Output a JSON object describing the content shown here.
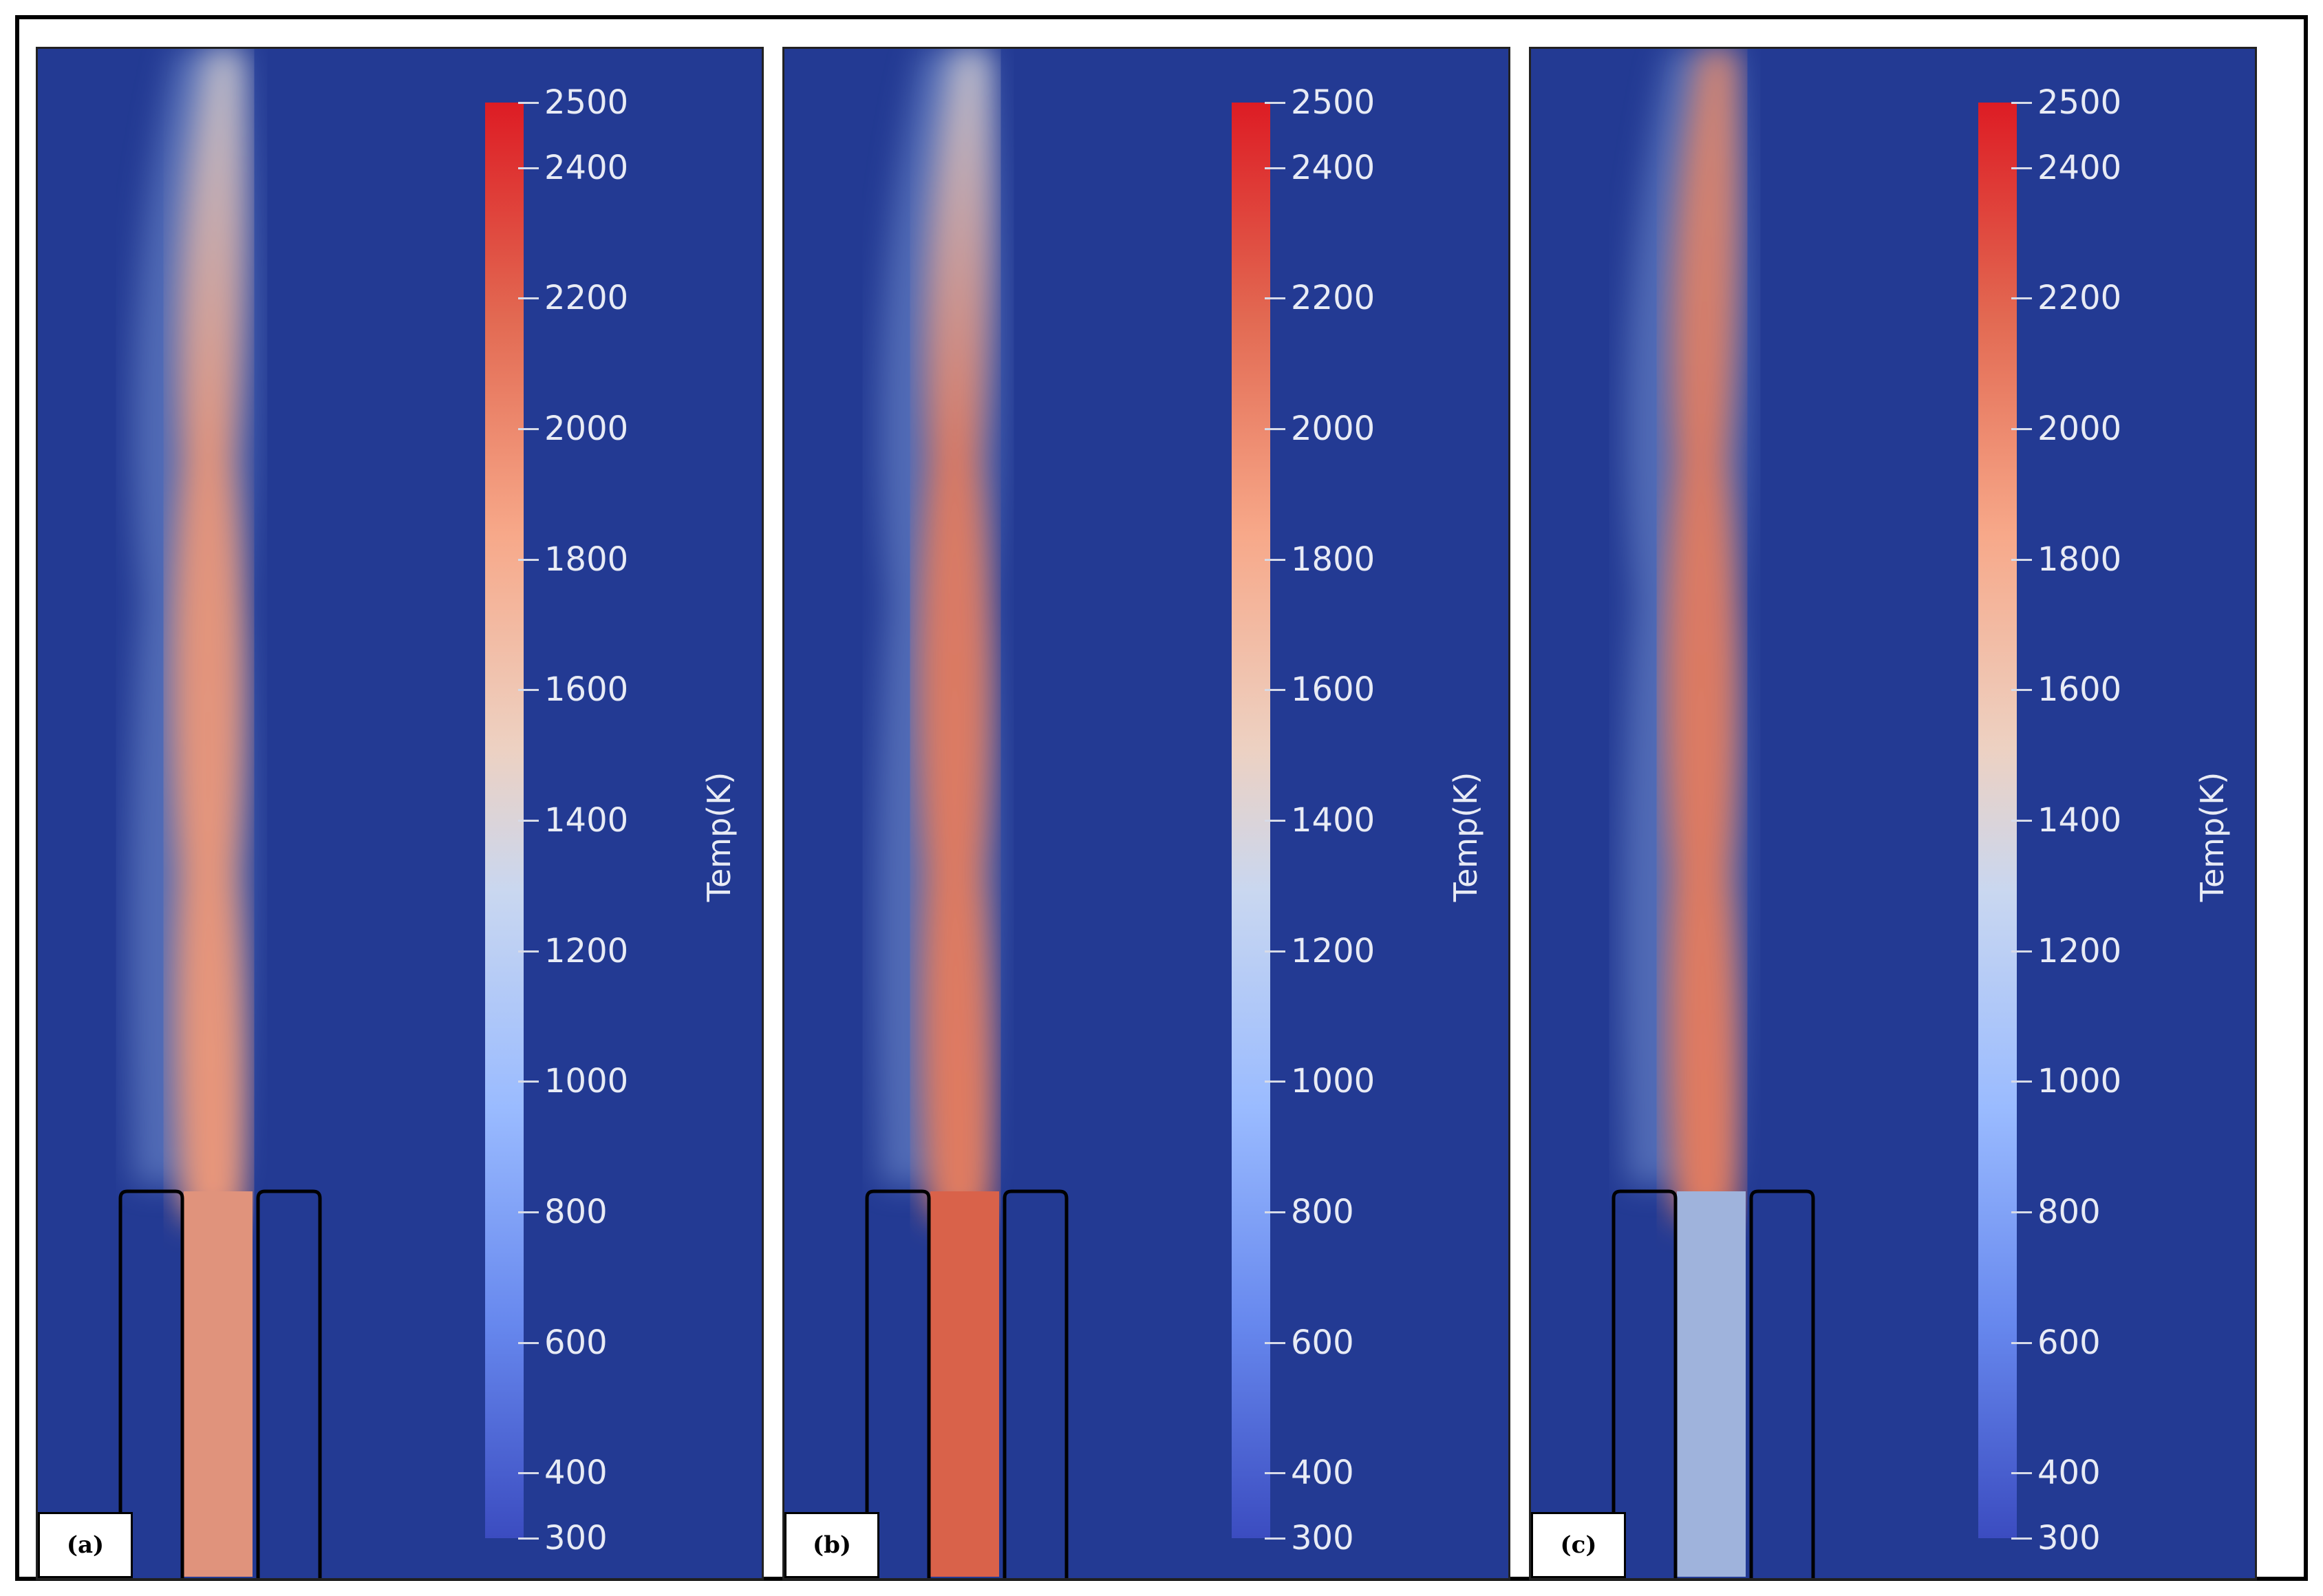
{
  "figure": {
    "background_color": "#233a93",
    "colorbar": {
      "title": "Temp(K)",
      "ticks": [
        "2500",
        "2400",
        "2200",
        "2000",
        "1800",
        "1600",
        "1400",
        "1200",
        "1000",
        "800",
        "600",
        "400",
        "300"
      ],
      "range": [
        300,
        2500
      ],
      "colormap": [
        "#3b4cc0",
        "#9abbff",
        "#edd1c2",
        "#e26952",
        "#dd1c24"
      ]
    },
    "panels": [
      {
        "label": "(a)",
        "flame_color": "#e8967a",
        "nozzle_color": "#e0937c",
        "tip_color": "#c7c6cf"
      },
      {
        "label": "(b)",
        "flame_color": "#e07b60",
        "nozzle_color": "#d9624a",
        "tip_color": "#c8c8d2"
      },
      {
        "label": "(c)",
        "flame_color": "#e07b60",
        "nozzle_color": "#9fb3dc",
        "tip_color": "#e2896c"
      }
    ]
  }
}
